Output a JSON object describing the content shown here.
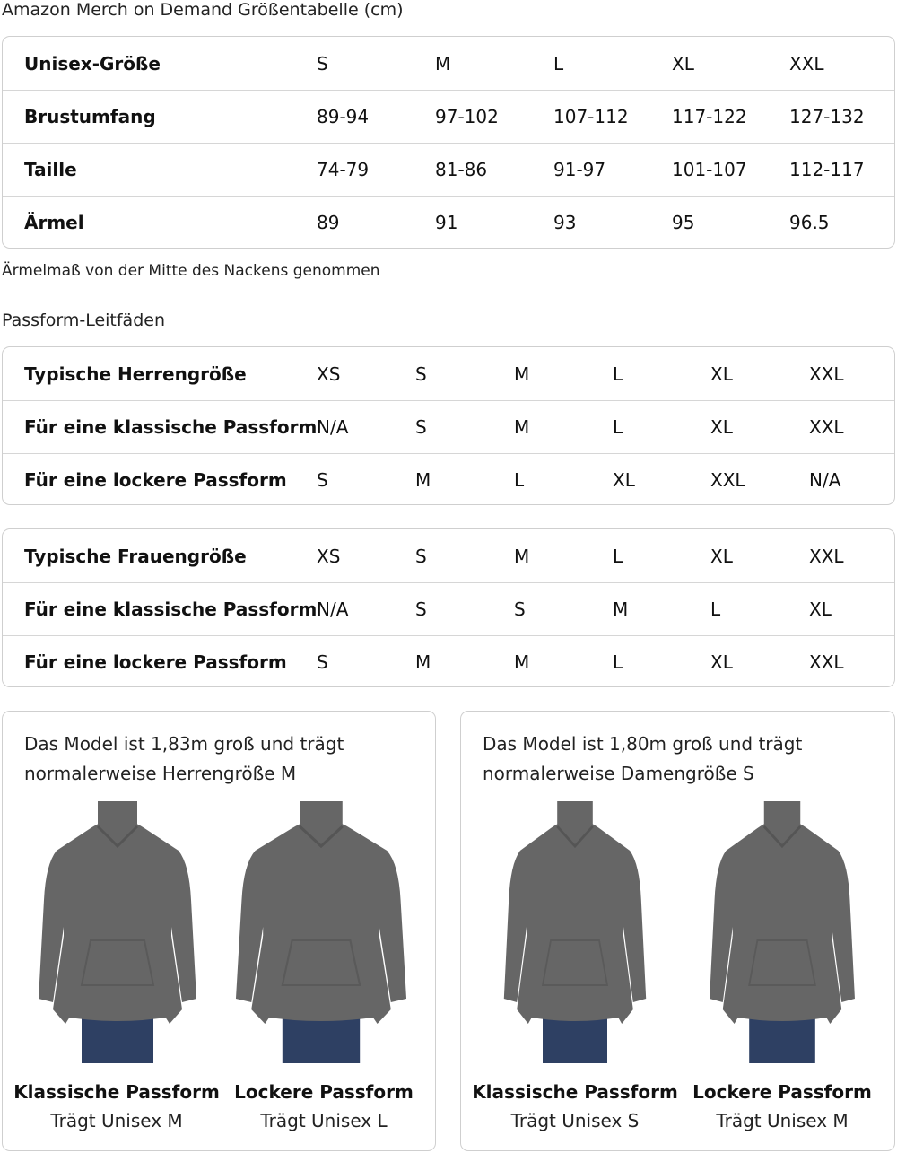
{
  "title": "Amazon Merch on Demand Größentabelle (cm)",
  "size_table": {
    "rows": [
      {
        "label": "Unisex-Größe",
        "values": [
          "S",
          "M",
          "L",
          "XL",
          "XXL"
        ]
      },
      {
        "label": "Brustumfang",
        "values": [
          "89-94",
          "97-102",
          "107-112",
          "117-122",
          "127-132"
        ]
      },
      {
        "label": "Taille",
        "values": [
          "74-79",
          "81-86",
          "91-97",
          "101-107",
          "112-117"
        ]
      },
      {
        "label": "Ärmel",
        "values": [
          "89",
          "91",
          "93",
          "95",
          "96.5"
        ]
      }
    ]
  },
  "note": "Ärmelmaß von der Mitte des Nackens genommen",
  "fit_title": "Passform-Leitfäden",
  "men_fit": {
    "rows": [
      {
        "label": "Typische Herrengröße",
        "values": [
          "XS",
          "S",
          "M",
          "L",
          "XL",
          "XXL"
        ]
      },
      {
        "label": "Für eine klassische Passform",
        "values": [
          "N/A",
          "S",
          "M",
          "L",
          "XL",
          "XXL"
        ]
      },
      {
        "label": "Für eine lockere Passform",
        "values": [
          "S",
          "M",
          "L",
          "XL",
          "XXL",
          "N/A"
        ]
      }
    ]
  },
  "women_fit": {
    "rows": [
      {
        "label": "Typische Frauengröße",
        "values": [
          "XS",
          "S",
          "M",
          "L",
          "XL",
          "XXL"
        ]
      },
      {
        "label": "Für eine klassische Passform",
        "values": [
          "N/A",
          "S",
          "S",
          "M",
          "L",
          "XL"
        ]
      },
      {
        "label": "Für eine lockere Passform",
        "values": [
          "S",
          "M",
          "M",
          "L",
          "XL",
          "XXL"
        ]
      }
    ]
  },
  "cards": [
    {
      "caption_1": "Das Model ist 1,83m groß und trägt",
      "caption_2": "normalerweise Herrengröße M",
      "figures": [
        {
          "name": "Klassische Passform",
          "sub": "Trägt Unisex M"
        },
        {
          "name": "Lockere Passform",
          "sub": "Trägt Unisex L"
        }
      ]
    },
    {
      "caption_1": "Das Model ist 1,80m groß und trägt",
      "caption_2": "normalerweise Damengröße S",
      "figures": [
        {
          "name": "Klassische Passform",
          "sub": "Trägt Unisex S"
        },
        {
          "name": "Lockere Passform",
          "sub": "Trägt Unisex M"
        }
      ]
    }
  ],
  "colors": {
    "hoodie": "#666666",
    "jeans": "#2e4063",
    "skin_men": "#d9a88a",
    "skin_women": "#7a4a32",
    "border": "#cfcfcf"
  }
}
